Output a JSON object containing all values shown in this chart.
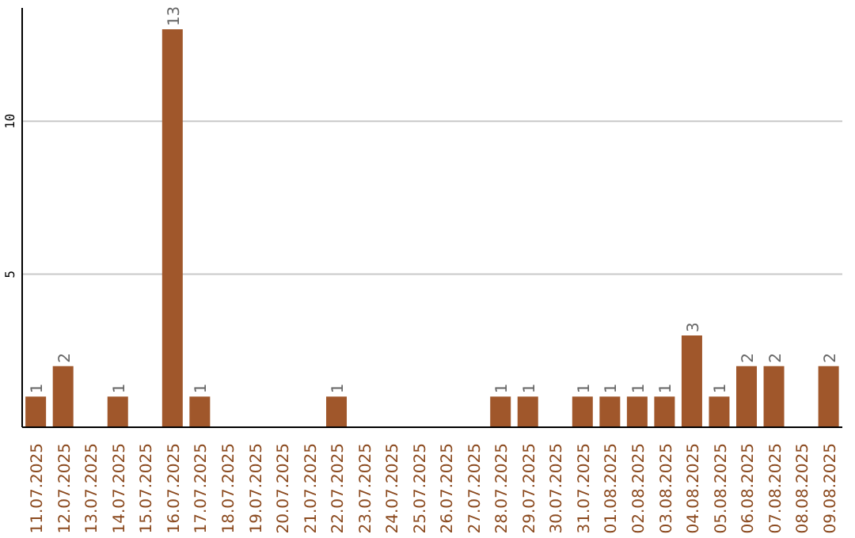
{
  "chart_data": {
    "type": "bar",
    "categories": [
      "11.07.2025",
      "12.07.2025",
      "13.07.2025",
      "14.07.2025",
      "15.07.2025",
      "16.07.2025",
      "17.07.2025",
      "18.07.2025",
      "19.07.2025",
      "20.07.2025",
      "21.07.2025",
      "22.07.2025",
      "23.07.2025",
      "24.07.2025",
      "25.07.2025",
      "26.07.2025",
      "27.07.2025",
      "28.07.2025",
      "29.07.2025",
      "30.07.2025",
      "31.07.2025",
      "01.08.2025",
      "02.08.2025",
      "03.08.2025",
      "04.08.2025",
      "05.08.2025",
      "06.08.2025",
      "07.08.2025",
      "08.08.2025",
      "09.08.2025"
    ],
    "values": [
      1,
      2,
      null,
      1,
      null,
      13,
      1,
      null,
      null,
      null,
      null,
      1,
      null,
      null,
      null,
      null,
      null,
      1,
      1,
      null,
      1,
      1,
      1,
      1,
      3,
      1,
      2,
      2,
      null,
      2
    ],
    "color": "#a0572b",
    "ylim": [
      0,
      13.7
    ],
    "yticks": [
      {
        "value": 0,
        "label": null
      },
      5,
      10
    ],
    "grid": "y",
    "data_labels": true
  }
}
